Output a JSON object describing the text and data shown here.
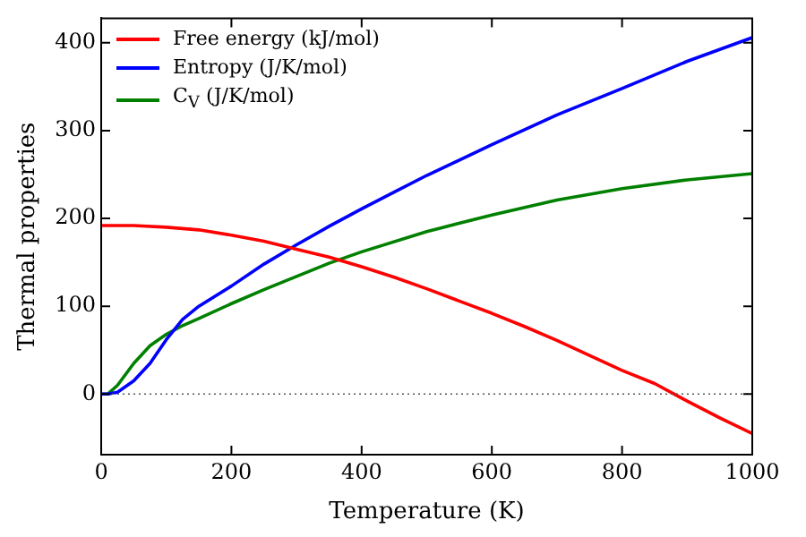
{
  "chart_data": {
    "type": "line",
    "xlabel": "Temperature (K)",
    "ylabel": "Thermal properties",
    "xlim": [
      0,
      1000
    ],
    "xticks": [
      0,
      200,
      400,
      600,
      800,
      1000
    ],
    "ylim": [
      -69,
      428
    ],
    "yticks": [
      0,
      100,
      200,
      300,
      400
    ],
    "grid": false,
    "legend": "top left",
    "marker": "none",
    "line_style": "solid",
    "ref_lines": [
      {
        "axis": "y",
        "value": 0,
        "color": "#555555",
        "line_style": "dotted"
      }
    ],
    "series": [
      {
        "name": "Free energy (kJ/mol)",
        "color": "#ff0000",
        "x": [
          0,
          50,
          100,
          150,
          200,
          250,
          300,
          350,
          400,
          450,
          500,
          550,
          600,
          650,
          700,
          750,
          800,
          850,
          900,
          950,
          1000
        ],
        "values": [
          192,
          192,
          190,
          187,
          181,
          174,
          165,
          156,
          145,
          133,
          120,
          106,
          92,
          77,
          61,
          44,
          27,
          12,
          -8,
          -27,
          -45
        ]
      },
      {
        "name": "Entropy (J/K/mol)",
        "color": "#0000ff",
        "x": [
          0,
          10,
          25,
          50,
          75,
          100,
          125,
          150,
          200,
          250,
          300,
          350,
          400,
          450,
          500,
          600,
          700,
          800,
          900,
          1000
        ],
        "values": [
          0,
          0,
          2,
          15,
          35,
          62,
          85,
          100,
          123,
          148,
          170,
          191,
          211,
          230,
          249,
          284,
          318,
          348,
          379,
          406
        ]
      },
      {
        "name": "C$_{V}$ (J/K/mol)",
        "color": "#008000",
        "x": [
          0,
          10,
          25,
          50,
          75,
          100,
          125,
          150,
          200,
          250,
          300,
          350,
          400,
          500,
          600,
          700,
          800,
          900,
          1000
        ],
        "values": [
          0,
          0,
          10,
          35,
          55,
          68,
          78,
          86,
          103,
          119,
          134,
          149,
          162,
          185,
          204,
          221,
          234,
          244,
          251
        ]
      }
    ]
  }
}
